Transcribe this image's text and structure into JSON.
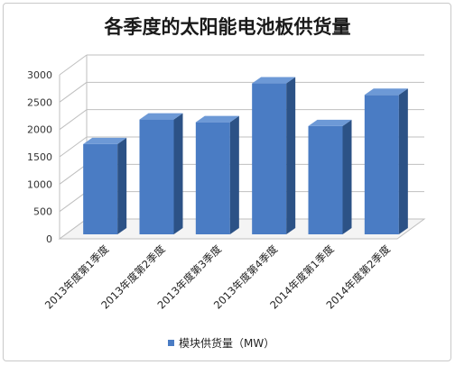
{
  "chart_data": {
    "type": "bar",
    "title": "各季度的太阳能电池板供货量",
    "categories": [
      "2013年度第1季度",
      "2013年度第2季度",
      "2013年度第3季度",
      "2013年度第4季度",
      "2014年度第1季度",
      "2014年度第2季度"
    ],
    "series": [
      {
        "name": "模块供货量（MW）",
        "values": [
          1650,
          2100,
          2050,
          2760,
          1980,
          2550
        ]
      }
    ],
    "ylim": [
      0,
      3000
    ],
    "yticks": [
      0,
      500,
      1000,
      1500,
      2000,
      2500,
      3000
    ],
    "grid": true,
    "legend_position": "bottom",
    "style": "3d-column",
    "colors": {
      "bar_front": "#4a7cc4",
      "bar_side": "#2c5286",
      "bar_top": "#6d99d6",
      "gridline": "#bfbfbf"
    }
  }
}
